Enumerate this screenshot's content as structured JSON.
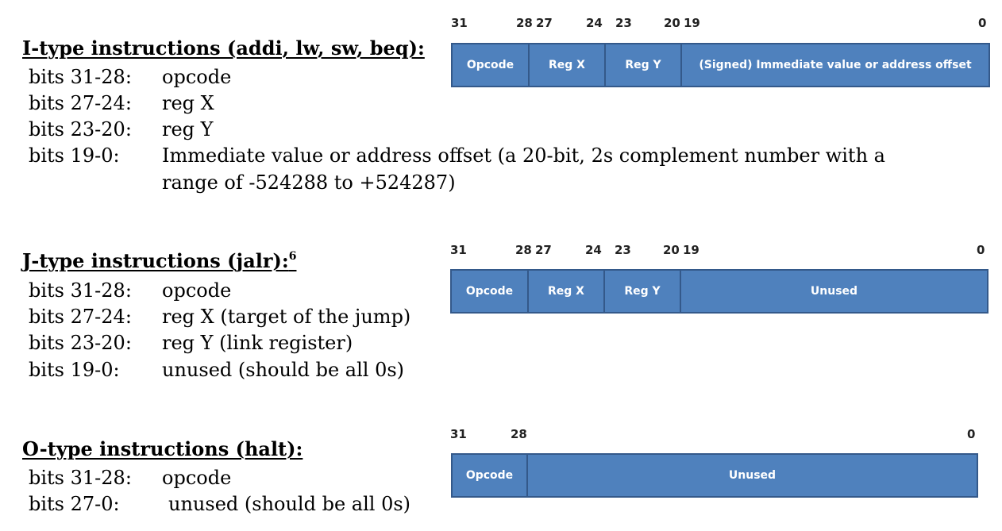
{
  "itype": {
    "title": "I-type instructions (addi, lw, sw, beq):",
    "rows": [
      {
        "bits": "bits 31-28:",
        "desc": "opcode"
      },
      {
        "bits": "bits 27-24:",
        "desc": "reg X"
      },
      {
        "bits": "bits 23-20:",
        "desc": "reg Y"
      },
      {
        "bits": "bits 19-0:",
        "desc": "Immediate value or address offset (a 20-bit, 2s complement number with a"
      }
    ],
    "continuation": "range of -524288 to +524287)",
    "diagram": {
      "bit_labels": [
        "31",
        "28",
        "27",
        "24",
        "23",
        "20",
        "19",
        "0"
      ],
      "fields": [
        "Opcode",
        "Reg X",
        "Reg Y",
        "(Signed) Immediate value or address offset"
      ]
    }
  },
  "jtype": {
    "title": "J-type instructions (jalr):",
    "footnote": "6",
    "rows": [
      {
        "bits": "bits 31-28:",
        "desc": "opcode"
      },
      {
        "bits": "bits 27-24:",
        "desc": "reg X (target of the jump)"
      },
      {
        "bits": "bits 23-20:",
        "desc": "reg Y (link register)"
      },
      {
        "bits": "bits 19-0:",
        "desc": "unused (should be all 0s)"
      }
    ],
    "diagram": {
      "bit_labels": [
        "31",
        "28",
        "27",
        "24",
        "23",
        "20",
        "19",
        "0"
      ],
      "fields": [
        "Opcode",
        "Reg X",
        "Reg Y",
        "Unused"
      ]
    }
  },
  "otype": {
    "title": "O-type instructions (halt):",
    "rows": [
      {
        "bits": "bits 31-28:",
        "desc": "opcode"
      },
      {
        "bits": "bits 27-0:",
        "desc": "unused (should be all 0s)"
      }
    ],
    "diagram": {
      "bit_labels": [
        "31",
        "28",
        "0"
      ],
      "fields": [
        "Opcode",
        "Unused"
      ]
    }
  }
}
